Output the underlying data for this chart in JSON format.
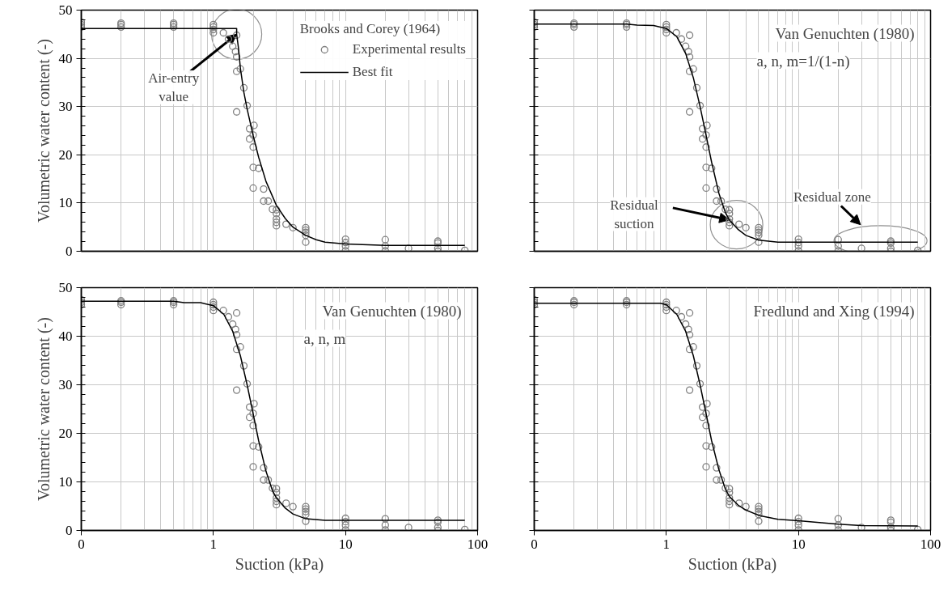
{
  "chart_data": [
    {
      "type": "scatter",
      "title": "Brooks and Corey (1964)",
      "ylabel": "Volumetric water content (-)",
      "xlim": [
        0.1,
        100
      ],
      "ylim": [
        0,
        50
      ],
      "yticks": [
        0,
        10,
        20,
        30,
        40,
        50
      ],
      "log": "x",
      "grid": true,
      "legend": "top right",
      "tick_labels": "y",
      "annotations": [
        {
          "text": "Air-entry value",
          "x": 1.5,
          "y": 45
        }
      ],
      "series": [
        {
          "name": "Experimental results",
          "marker": "circle",
          "color": "#808080",
          "x": [
            0.1,
            0.1,
            0.1,
            0.2,
            0.2,
            0.2,
            0.5,
            0.5,
            0.5,
            1,
            1,
            1,
            1,
            1.19,
            1.3,
            1.4,
            1.5,
            1.47,
            1.5,
            1.5,
            1.6,
            1.5,
            1.7,
            1.8,
            2.03,
            1.88,
            2.0,
            1.88,
            2.0,
            2.0,
            2.2,
            2.0,
            2.4,
            2.4,
            2.6,
            2.8,
            3.0,
            3.0,
            3.0,
            3.0,
            3.0,
            3.55,
            4.0,
            5,
            5,
            5,
            5,
            5,
            10,
            10,
            10,
            10,
            20,
            20,
            20,
            30,
            50,
            50,
            50,
            50,
            80
          ],
          "values": [
            46.5,
            47,
            47.5,
            46.5,
            47,
            47.3,
            46.5,
            47,
            47.3,
            47,
            46.5,
            46,
            45.3,
            45.3,
            44,
            42.5,
            44.8,
            41.4,
            40.3,
            37.3,
            37.8,
            28.9,
            33.9,
            30.2,
            26.1,
            25.4,
            24.1,
            23.3,
            21.6,
            17.4,
            17.2,
            13.1,
            12.9,
            10.4,
            10.4,
            8.7,
            8.6,
            7.8,
            6.7,
            6.0,
            5.3,
            5.6,
            4.9,
            4.9,
            4.4,
            3.9,
            3.3,
            1.9,
            2.5,
            1.8,
            1.1,
            0.1,
            2.4,
            1.1,
            0.1,
            0.6,
            2.1,
            1.7,
            0.6,
            0,
            0.2
          ]
        },
        {
          "name": "Best fit",
          "type": "line",
          "color": "#000000",
          "x": [
            0.1,
            1.5,
            1.5,
            1.55,
            1.6,
            1.7,
            1.8,
            2,
            2.2,
            2.5,
            3,
            3.5,
            4,
            5,
            6,
            7,
            10,
            20,
            80
          ],
          "values": [
            46.2,
            46.2,
            45,
            42,
            38,
            33,
            29.5,
            24,
            19.5,
            14.5,
            9.5,
            6.8,
            5,
            3.3,
            2.4,
            1.9,
            1.5,
            1.2,
            1.2
          ]
        }
      ]
    },
    {
      "type": "scatter",
      "title": "Van Genuchten (1980)",
      "subtitle": "a, n, m=1/(1-n)",
      "xlim": [
        0.1,
        100
      ],
      "ylim": [
        0,
        50
      ],
      "yticks": [
        0,
        10,
        20,
        30,
        40,
        50
      ],
      "log": "x",
      "grid": true,
      "tick_labels": false,
      "annotations": [
        {
          "text": "Residual suction",
          "x": 3,
          "y": 6.5
        },
        {
          "text": "Residual zone",
          "x": 41.8,
          "y": 1.9
        }
      ],
      "series": [
        {
          "marker": "circle",
          "color": "#808080",
          "x": [
            0.1,
            0.1,
            0.1,
            0.2,
            0.2,
            0.2,
            0.5,
            0.5,
            0.5,
            1,
            1,
            1,
            1,
            1.19,
            1.3,
            1.4,
            1.5,
            1.47,
            1.5,
            1.5,
            1.6,
            1.5,
            1.7,
            1.8,
            2.03,
            1.88,
            2.0,
            1.88,
            2.0,
            2.0,
            2.2,
            2.0,
            2.4,
            2.4,
            2.6,
            2.8,
            3.0,
            3.0,
            3.0,
            3.0,
            3.0,
            3.55,
            4.0,
            5,
            5,
            5,
            5,
            5,
            10,
            10,
            10,
            10,
            20,
            20,
            20,
            30,
            50,
            50,
            50,
            50,
            80
          ],
          "values": [
            46.5,
            47,
            47.5,
            46.5,
            47,
            47.3,
            46.5,
            47,
            47.3,
            47,
            46.5,
            46,
            45.3,
            45.3,
            44,
            42.5,
            44.8,
            41.4,
            40.3,
            37.3,
            37.8,
            28.9,
            33.9,
            30.2,
            26.1,
            25.4,
            24.1,
            23.3,
            21.6,
            17.4,
            17.2,
            13.1,
            12.9,
            10.4,
            10.4,
            8.7,
            8.6,
            7.8,
            6.7,
            6.0,
            5.3,
            5.6,
            4.9,
            4.9,
            4.4,
            3.9,
            3.3,
            1.9,
            2.5,
            1.8,
            1.1,
            0.1,
            2.4,
            1.1,
            0.1,
            0.6,
            2.1,
            1.7,
            0.6,
            0,
            0.2
          ]
        },
        {
          "type": "line",
          "color": "#000000",
          "x": [
            0.1,
            0.5,
            0.6,
            0.8,
            1,
            1.2,
            1.4,
            1.6,
            1.8,
            2,
            2.2,
            2.5,
            2.8,
            3,
            3.5,
            4,
            5,
            7,
            80
          ],
          "values": [
            47.1,
            47.1,
            46.9,
            46.8,
            46.2,
            44.5,
            41,
            36,
            30,
            24,
            18.5,
            12,
            8,
            6.5,
            4.5,
            3.3,
            2.3,
            1.9,
            1.9
          ]
        }
      ]
    },
    {
      "type": "scatter",
      "title": "Van Genuchten (1980)",
      "subtitle": "a, n, m",
      "xlabel": "Suction (kPa)",
      "ylabel": "Volumetric water content (-)",
      "xlim": [
        0.1,
        100
      ],
      "xticks": [
        {
          "value": 0.1,
          "label": "0"
        },
        1,
        10,
        100
      ],
      "ylim": [
        0,
        50
      ],
      "yticks": [
        0,
        10,
        20,
        30,
        40,
        50
      ],
      "log": "x",
      "grid": true,
      "series": [
        {
          "marker": "circle",
          "color": "#808080",
          "x": [
            0.1,
            0.1,
            0.1,
            0.2,
            0.2,
            0.2,
            0.5,
            0.5,
            0.5,
            1,
            1,
            1,
            1,
            1.19,
            1.3,
            1.4,
            1.5,
            1.47,
            1.5,
            1.5,
            1.6,
            1.5,
            1.7,
            1.8,
            2.03,
            1.88,
            2.0,
            1.88,
            2.0,
            2.0,
            2.2,
            2.0,
            2.4,
            2.4,
            2.6,
            2.8,
            3.0,
            3.0,
            3.0,
            3.0,
            3.0,
            3.55,
            4.0,
            5,
            5,
            5,
            5,
            5,
            10,
            10,
            10,
            10,
            20,
            20,
            20,
            30,
            50,
            50,
            50,
            50,
            80
          ],
          "values": [
            46.5,
            47,
            47.5,
            46.5,
            47,
            47.3,
            46.5,
            47,
            47.3,
            47,
            46.5,
            46,
            45.3,
            45.3,
            44,
            42.5,
            44.8,
            41.4,
            40.3,
            37.3,
            37.8,
            28.9,
            33.9,
            30.2,
            26.1,
            25.4,
            24.1,
            23.3,
            21.6,
            17.4,
            17.2,
            13.1,
            12.9,
            10.4,
            10.4,
            8.7,
            8.6,
            7.8,
            6.7,
            6.0,
            5.3,
            5.6,
            4.9,
            4.9,
            4.4,
            3.9,
            3.3,
            1.9,
            2.5,
            1.8,
            1.1,
            0.1,
            2.4,
            1.1,
            0.1,
            0.6,
            2.1,
            1.7,
            0.6,
            0,
            0.2
          ]
        },
        {
          "type": "line",
          "color": "#000000",
          "x": [
            0.1,
            0.5,
            0.6,
            0.8,
            1,
            1.2,
            1.4,
            1.6,
            1.8,
            2,
            2.2,
            2.5,
            2.8,
            3,
            3.5,
            4,
            5,
            7,
            80
          ],
          "values": [
            47.2,
            47.2,
            46.9,
            46.9,
            46.3,
            44.5,
            41,
            36,
            30,
            24,
            18.5,
            12.2,
            8.2,
            6.7,
            4.6,
            3.4,
            2.4,
            2.1,
            2.1
          ]
        }
      ]
    },
    {
      "type": "scatter",
      "title": "Fredlund and Xing (1994)",
      "xlabel": "Suction (kPa)",
      "xlim": [
        0.1,
        100
      ],
      "xticks": [
        {
          "value": 0.1,
          "label": "0"
        },
        1,
        10,
        100
      ],
      "ylim": [
        0,
        50
      ],
      "yticks": [
        0,
        10,
        20,
        30,
        40,
        50
      ],
      "log": "x",
      "grid": true,
      "tick_labels": "x",
      "series": [
        {
          "marker": "circle",
          "color": "#808080",
          "x": [
            0.1,
            0.1,
            0.1,
            0.2,
            0.2,
            0.2,
            0.5,
            0.5,
            0.5,
            1,
            1,
            1,
            1,
            1.19,
            1.3,
            1.4,
            1.5,
            1.47,
            1.5,
            1.5,
            1.6,
            1.5,
            1.7,
            1.8,
            2.03,
            1.88,
            2.0,
            1.88,
            2.0,
            2.0,
            2.2,
            2.0,
            2.4,
            2.4,
            2.6,
            2.8,
            3.0,
            3.0,
            3.0,
            3.0,
            3.0,
            3.55,
            4.0,
            5,
            5,
            5,
            5,
            5,
            10,
            10,
            10,
            10,
            20,
            20,
            20,
            30,
            50,
            50,
            50,
            50,
            80
          ],
          "values": [
            46.5,
            47,
            47.5,
            46.5,
            47,
            47.3,
            46.5,
            47,
            47.3,
            47,
            46.5,
            46,
            45.3,
            45.3,
            44,
            42.5,
            44.8,
            41.4,
            40.3,
            37.3,
            37.8,
            28.9,
            33.9,
            30.2,
            26.1,
            25.4,
            24.1,
            23.3,
            21.6,
            17.4,
            17.2,
            13.1,
            12.9,
            10.4,
            10.4,
            8.7,
            8.6,
            7.8,
            6.7,
            6.0,
            5.3,
            5.6,
            4.9,
            4.9,
            4.4,
            3.9,
            3.3,
            1.9,
            2.5,
            1.8,
            1.1,
            0.1,
            2.4,
            1.1,
            0.1,
            0.6,
            2.1,
            1.7,
            0.6,
            0,
            0.2
          ]
        },
        {
          "type": "line",
          "color": "#000000",
          "x": [
            0.1,
            0.9,
            1,
            1.2,
            1.4,
            1.6,
            1.8,
            2,
            2.2,
            2.5,
            2.8,
            3,
            3.5,
            4,
            5,
            7,
            10,
            15,
            20,
            30,
            80
          ],
          "values": [
            46.8,
            46.8,
            46.5,
            44.5,
            41,
            36,
            30,
            24,
            18.5,
            12.5,
            8.5,
            7,
            5.2,
            4.2,
            3.1,
            2.3,
            2,
            1.6,
            1.3,
            1.0,
            0.9
          ]
        }
      ]
    }
  ]
}
